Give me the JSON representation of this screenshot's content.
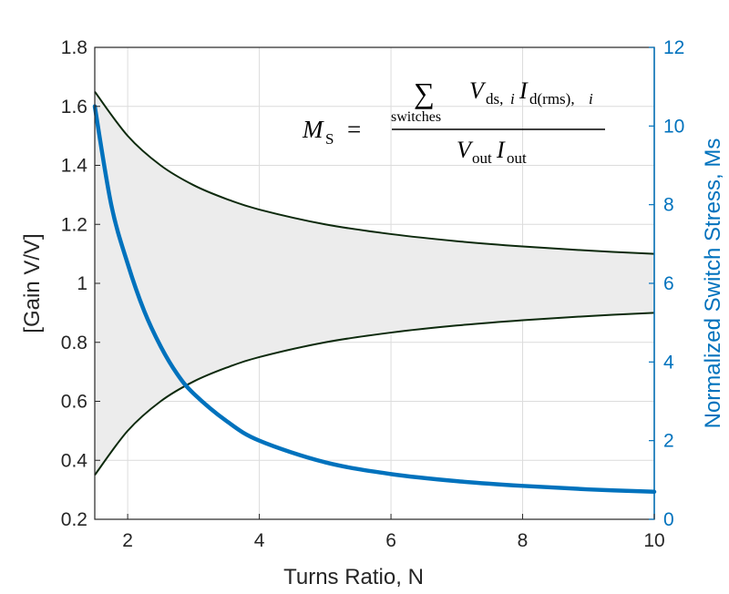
{
  "chart_data": {
    "type": "line",
    "xlabel": "Turns Ratio, N",
    "ylabel_left": "[Gain V/V]",
    "ylabel_right": "Normalized Switch Stress, Ms",
    "xlim": [
      1.5,
      10
    ],
    "ylim_left": [
      0.2,
      1.8
    ],
    "ylim_right": [
      0,
      12
    ],
    "x_ticks": [
      2,
      4,
      6,
      8,
      10
    ],
    "y_ticks_left": [
      0.2,
      0.4,
      0.6,
      0.8,
      1,
      1.2,
      1.4,
      1.6,
      1.8
    ],
    "y_ticks_right": [
      0,
      2,
      4,
      6,
      8,
      10,
      12
    ],
    "grid": true,
    "colors": {
      "gain_lines": "#0d2a0d",
      "band_fill": "#ececec",
      "switch_stress": "#0072BD",
      "axis": "#262626"
    },
    "series": [
      {
        "axis": "left",
        "x": [
          1.5,
          2,
          2.5,
          3,
          3.5,
          4,
          5,
          6,
          7,
          8,
          9,
          10
        ],
        "values": [
          1.65,
          1.5,
          1.4,
          1.333,
          1.286,
          1.25,
          1.2,
          1.167,
          1.143,
          1.125,
          1.111,
          1.1
        ]
      },
      {
        "axis": "left",
        "x": [
          1.5,
          2,
          2.5,
          3,
          3.5,
          4,
          5,
          6,
          7,
          8,
          9,
          10
        ],
        "values": [
          0.35,
          0.5,
          0.6,
          0.667,
          0.714,
          0.75,
          0.8,
          0.833,
          0.857,
          0.875,
          0.889,
          0.9
        ]
      },
      {
        "axis": "right",
        "x": [
          1.5,
          1.75,
          2,
          2.25,
          2.5,
          2.75,
          3,
          3.5,
          4,
          5,
          6,
          7,
          8,
          9,
          10
        ],
        "values": [
          10.5,
          8.0,
          6.5,
          5.3,
          4.4,
          3.7,
          3.2,
          2.5,
          2.0,
          1.45,
          1.15,
          0.97,
          0.85,
          0.76,
          0.7
        ]
      }
    ],
    "annotation": {
      "lhs": "M",
      "lhs_sub": "S",
      "equals": "=",
      "sum": "∑",
      "sum_sub": "switches",
      "v": "V",
      "v_sub": "ds,",
      "v_sub_i": "i",
      "i": "I",
      "i_sub": "d(rms),",
      "i_sub_i": "i",
      "den_v": "V",
      "den_v_sub": "out",
      "den_i": "I",
      "den_i_sub": "out"
    }
  }
}
